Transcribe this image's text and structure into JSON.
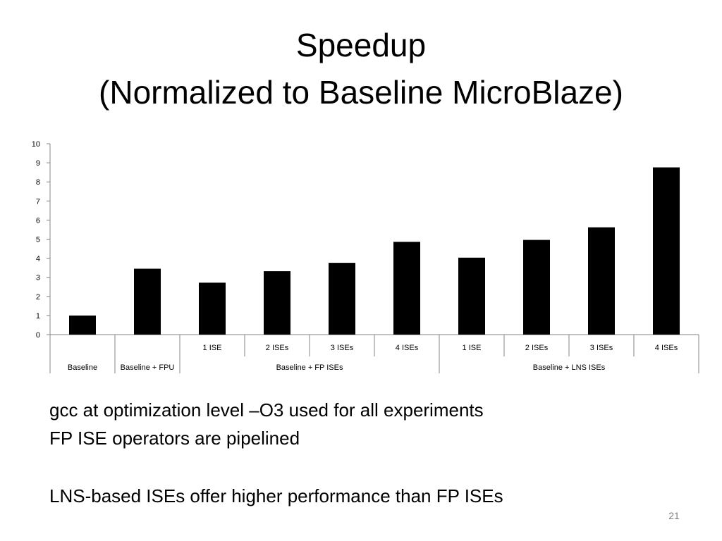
{
  "slide": {
    "title_line1": "Speedup",
    "title_line2": "(Normalized to Baseline MicroBlaze)",
    "bullets": [
      "gcc at optimization level –O3 used for all experiments",
      "FP ISE operators are pipelined",
      "LNS-based ISEs offer higher performance than FP ISEs"
    ],
    "page_number": "21"
  },
  "chart_data": {
    "type": "bar",
    "title": "Speedup (Normalized to Baseline MicroBlaze)",
    "xlabel": "",
    "ylabel": "",
    "ylim": [
      0,
      10
    ],
    "yticks": [
      0,
      1,
      2,
      3,
      4,
      5,
      6,
      7,
      8,
      9,
      10
    ],
    "grid": false,
    "legend": "none",
    "bar_color": "#000000",
    "axis_color": "#868686",
    "categories": [
      "",
      "",
      "1 ISE",
      "2 ISEs",
      "3 ISEs",
      "4 ISEs",
      "1 ISE",
      "2 ISEs",
      "3 ISEs",
      "4 ISEs"
    ],
    "groups": [
      {
        "label": "Baseline",
        "count": 1
      },
      {
        "label": "Baseline + FPU",
        "count": 1
      },
      {
        "label": "Baseline + FP ISEs",
        "count": 4
      },
      {
        "label": "Baseline + LNS ISEs",
        "count": 4
      }
    ],
    "values": [
      1.0,
      3.45,
      2.72,
      3.32,
      3.76,
      4.86,
      4.03,
      4.96,
      5.62,
      8.76
    ]
  }
}
